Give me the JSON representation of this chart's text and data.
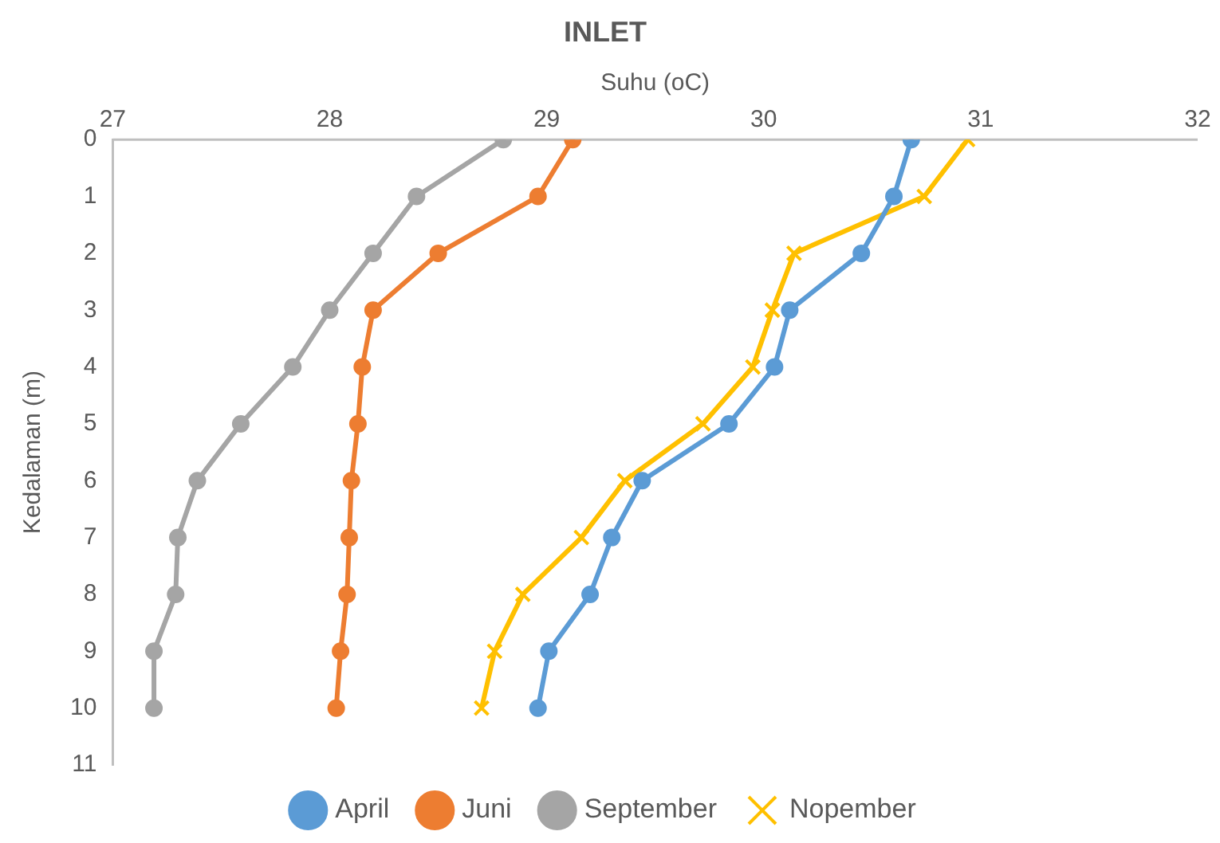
{
  "chart_data": {
    "type": "line",
    "title": "INLET",
    "xlabel": "Suhu (oC)",
    "ylabel": "Kedalaman (m)",
    "xlim": [
      27,
      32
    ],
    "xticks": [
      27,
      28,
      29,
      30,
      31,
      32
    ],
    "ylim": [
      11,
      0
    ],
    "yticks": [
      0,
      1,
      2,
      3,
      4,
      5,
      6,
      7,
      8,
      9,
      10,
      11
    ],
    "grid": false,
    "legend": "bottom",
    "marker": "circle",
    "series": [
      {
        "name": "April",
        "color": "#5b9bd5",
        "x": [
          30.68,
          30.6,
          30.45,
          30.12,
          30.05,
          29.84,
          29.44,
          29.3,
          29.2,
          29.01,
          28.96
        ],
        "values": [
          0,
          1,
          2,
          3,
          4,
          5,
          6,
          7,
          8,
          9,
          10
        ]
      },
      {
        "name": "Juni",
        "color": "#ed7d31",
        "x": [
          29.12,
          28.96,
          28.5,
          28.2,
          28.15,
          28.13,
          28.1,
          28.09,
          28.08,
          28.05,
          28.03
        ],
        "values": [
          0,
          1,
          2,
          3,
          4,
          5,
          6,
          7,
          8,
          9,
          10
        ]
      },
      {
        "name": "September",
        "color": "#a5a5a5",
        "x": [
          28.8,
          28.4,
          28.2,
          28.0,
          27.83,
          27.59,
          27.39,
          27.3,
          27.29,
          27.19,
          27.19
        ],
        "values": [
          0,
          1,
          2,
          3,
          4,
          5,
          6,
          7,
          8,
          9,
          10
        ]
      },
      {
        "name": "Nopember",
        "color": "#ffc000",
        "marker": "cross",
        "x": [
          30.94,
          30.74,
          30.14,
          30.04,
          29.95,
          29.72,
          29.36,
          29.16,
          28.89,
          28.76,
          28.7
        ],
        "values": [
          0,
          1,
          2,
          3,
          4,
          5,
          6,
          7,
          8,
          9,
          10
        ]
      }
    ]
  }
}
